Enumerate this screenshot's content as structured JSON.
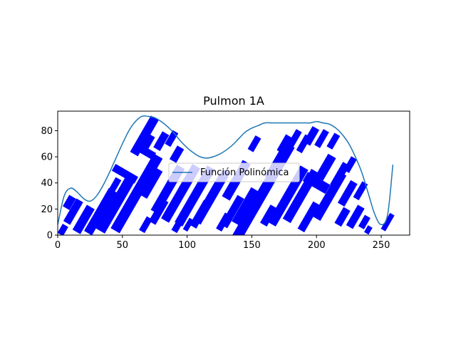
{
  "chart_data": {
    "type": "line",
    "title": "Pulmon 1A",
    "xlabel": "",
    "ylabel": "",
    "xlim": [
      0,
      272
    ],
    "ylim": [
      0,
      95
    ],
    "x_ticks": [
      0,
      50,
      100,
      150,
      200,
      250
    ],
    "y_ticks": [
      0,
      20,
      40,
      60,
      80
    ],
    "grid": false,
    "legend_position": "center",
    "colors": {
      "curve": "#1f77b4",
      "blocks": "#0000ff",
      "axes": "#000000"
    },
    "series": [
      {
        "name": "Función Polinómica",
        "x": [
          0,
          5,
          10,
          15,
          20,
          25,
          30,
          35,
          40,
          45,
          50,
          55,
          60,
          65,
          70,
          75,
          80,
          85,
          90,
          95,
          100,
          105,
          110,
          115,
          120,
          125,
          130,
          135,
          140,
          145,
          150,
          155,
          160,
          165,
          170,
          175,
          180,
          185,
          190,
          195,
          200,
          205,
          210,
          215,
          220,
          225,
          230,
          235,
          240,
          245,
          250,
          255,
          259
        ],
        "y": [
          8,
          30,
          36,
          33,
          28,
          26,
          30,
          38,
          48,
          59,
          70,
          80,
          87,
          91,
          91,
          90,
          87,
          83,
          78,
          72,
          67,
          63,
          60,
          59,
          60,
          62,
          65,
          69,
          74,
          79,
          82,
          84,
          86,
          86,
          86,
          86,
          86,
          86,
          86,
          86,
          87,
          86,
          85,
          82,
          77,
          70,
          60,
          48,
          32,
          16,
          8,
          16,
          54
        ]
      }
    ],
    "blocks": [
      {
        "x": 4,
        "y": 4,
        "w": 5,
        "h": 8,
        "angle": 30
      },
      {
        "x": 9,
        "y": 25,
        "w": 6,
        "h": 10,
        "angle": 30
      },
      {
        "x": 12,
        "y": 18,
        "w": 6,
        "h": 20,
        "angle": 30
      },
      {
        "x": 20,
        "y": 12,
        "w": 7,
        "h": 22,
        "angle": 30
      },
      {
        "x": 33,
        "y": 18,
        "w": 7,
        "h": 38,
        "angle": 30
      },
      {
        "x": 45,
        "y": 24,
        "w": 8,
        "h": 48,
        "angle": 30
      },
      {
        "x": 52,
        "y": 47,
        "w": 6,
        "h": 20,
        "angle": -60
      },
      {
        "x": 44,
        "y": 38,
        "w": 5,
        "h": 12,
        "angle": 30
      },
      {
        "x": 61,
        "y": 32,
        "w": 8,
        "h": 66,
        "angle": 30
      },
      {
        "x": 67,
        "y": 76,
        "w": 7,
        "h": 32,
        "angle": 30
      },
      {
        "x": 68,
        "y": 64,
        "w": 6,
        "h": 15,
        "angle": -60
      },
      {
        "x": 70,
        "y": 71,
        "w": 5,
        "h": 12,
        "angle": 30
      },
      {
        "x": 72,
        "y": 40,
        "w": 7,
        "h": 24,
        "angle": 30
      },
      {
        "x": 78,
        "y": 18,
        "w": 6,
        "h": 20,
        "angle": 30
      },
      {
        "x": 68,
        "y": 8,
        "w": 5,
        "h": 12,
        "angle": 30
      },
      {
        "x": 80,
        "y": 72,
        "w": 6,
        "h": 14,
        "angle": 30
      },
      {
        "x": 88,
        "y": 74,
        "w": 5,
        "h": 12,
        "angle": 30
      },
      {
        "x": 85,
        "y": 35,
        "w": 7,
        "h": 40,
        "angle": 30
      },
      {
        "x": 92,
        "y": 62,
        "w": 6,
        "h": 12,
        "angle": 30
      },
      {
        "x": 95,
        "y": 32,
        "w": 7,
        "h": 48,
        "angle": 30
      },
      {
        "x": 93,
        "y": 8,
        "w": 5,
        "h": 12,
        "angle": 30
      },
      {
        "x": 101,
        "y": 8,
        "w": 4,
        "h": 10,
        "angle": 30
      },
      {
        "x": 106,
        "y": 30,
        "w": 7,
        "h": 50,
        "angle": 30
      },
      {
        "x": 110,
        "y": 16,
        "w": 6,
        "h": 22,
        "angle": 30
      },
      {
        "x": 118,
        "y": 28,
        "w": 7,
        "h": 42,
        "angle": 30
      },
      {
        "x": 123,
        "y": 36,
        "w": 6,
        "h": 30,
        "angle": 30
      },
      {
        "x": 128,
        "y": 10,
        "w": 5,
        "h": 14,
        "angle": 30
      },
      {
        "x": 135,
        "y": 18,
        "w": 6,
        "h": 26,
        "angle": 30
      },
      {
        "x": 138,
        "y": 42,
        "w": 7,
        "h": 32,
        "angle": 30
      },
      {
        "x": 145,
        "y": 22,
        "w": 7,
        "h": 30,
        "angle": 30
      },
      {
        "x": 152,
        "y": 70,
        "w": 5,
        "h": 12,
        "angle": 30
      },
      {
        "x": 157,
        "y": 30,
        "w": 8,
        "h": 90,
        "angle": 30
      },
      {
        "x": 163,
        "y": 15,
        "w": 6,
        "h": 16,
        "angle": 30
      },
      {
        "x": 169,
        "y": 55,
        "w": 6,
        "h": 26,
        "angle": 30
      },
      {
        "x": 178,
        "y": 30,
        "w": 7,
        "h": 50,
        "angle": 30
      },
      {
        "x": 175,
        "y": 70,
        "w": 5,
        "h": 14,
        "angle": 30
      },
      {
        "x": 183,
        "y": 74,
        "w": 5,
        "h": 14,
        "angle": 30
      },
      {
        "x": 188,
        "y": 30,
        "w": 7,
        "h": 44,
        "angle": 30
      },
      {
        "x": 190,
        "y": 70,
        "w": 5,
        "h": 14,
        "angle": 30
      },
      {
        "x": 196,
        "y": 76,
        "w": 6,
        "h": 14,
        "angle": 30
      },
      {
        "x": 194,
        "y": 14,
        "w": 6,
        "h": 24,
        "angle": 30
      },
      {
        "x": 200,
        "y": 40,
        "w": 8,
        "h": 20,
        "angle": -60
      },
      {
        "x": 204,
        "y": 74,
        "w": 5,
        "h": 14,
        "angle": 30
      },
      {
        "x": 207,
        "y": 52,
        "w": 7,
        "h": 20,
        "angle": 30
      },
      {
        "x": 210,
        "y": 30,
        "w": 7,
        "h": 40,
        "angle": 30
      },
      {
        "x": 213,
        "y": 72,
        "w": 5,
        "h": 12,
        "angle": 30
      },
      {
        "x": 218,
        "y": 46,
        "w": 6,
        "h": 20,
        "angle": 30
      },
      {
        "x": 220,
        "y": 14,
        "w": 6,
        "h": 14,
        "angle": 30
      },
      {
        "x": 224,
        "y": 32,
        "w": 6,
        "h": 20,
        "angle": 30
      },
      {
        "x": 226,
        "y": 54,
        "w": 5,
        "h": 12,
        "angle": 30
      },
      {
        "x": 230,
        "y": 14,
        "w": 6,
        "h": 18,
        "angle": 30
      },
      {
        "x": 234,
        "y": 34,
        "w": 5,
        "h": 14,
        "angle": 30
      },
      {
        "x": 237,
        "y": 10,
        "w": 5,
        "h": 10,
        "angle": 30
      },
      {
        "x": 240,
        "y": 4,
        "w": 4,
        "h": 6,
        "angle": 30
      },
      {
        "x": 255,
        "y": 10,
        "w": 4,
        "h": 14,
        "angle": 30
      }
    ]
  }
}
